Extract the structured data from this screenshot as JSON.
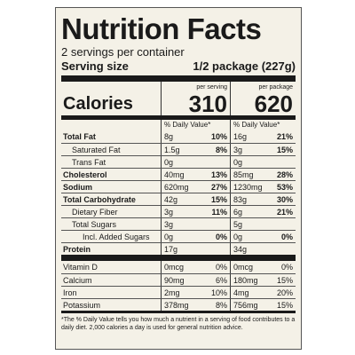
{
  "header": {
    "title": "Nutrition Facts",
    "servings": "2 servings per container",
    "serving_size_label": "Serving size",
    "serving_size": "1/2 package (227g)"
  },
  "columns": {
    "serving": "per serving",
    "package": "per package",
    "dv": "% Daily Value*"
  },
  "calories": {
    "label": "Calories",
    "serving": "310",
    "package": "620"
  },
  "rows": [
    {
      "nutrient": "Total Fat",
      "serving": [
        "8g",
        "10%"
      ],
      "package": [
        "16g",
        "21%"
      ]
    },
    {
      "nutrient": "Saturated Fat",
      "serving": [
        "1.5g",
        "8%"
      ],
      "package": [
        "3g",
        "15%"
      ]
    },
    {
      "nutrient": "Trans Fat",
      "serving": [
        "0g"
      ],
      "package": [
        "0g"
      ]
    },
    {
      "nutrient": "Cholesterol",
      "serving": [
        "40mg",
        "13%"
      ],
      "package": [
        "85mg",
        "28%"
      ]
    },
    {
      "nutrient": "Sodium",
      "serving": [
        "620mg",
        "27%"
      ],
      "package": [
        "1230mg",
        "53%"
      ]
    },
    {
      "nutrient": "Total Carbohydrate",
      "serving": [
        "42g",
        "15%"
      ],
      "package": [
        "83g",
        "30%"
      ]
    },
    {
      "nutrient": "Dietary Fiber",
      "serving": [
        "3g",
        "11%"
      ],
      "package": [
        "6g",
        "21%"
      ]
    },
    {
      "nutrient": "Total Sugars",
      "serving": [
        "3g"
      ],
      "package": [
        "5g"
      ]
    },
    {
      "nutrient": "Incl. Added Sugars",
      "serving": [
        "0g",
        "0%"
      ],
      "package": [
        "0g",
        "0%"
      ]
    },
    {
      "nutrient": "Protein",
      "serving": [
        "17g"
      ],
      "package": [
        "34g"
      ]
    }
  ],
  "vitamins": [
    {
      "nutrient": "Vitamin D",
      "serving": [
        "0mcg",
        "0%"
      ],
      "package": [
        "0mcg",
        "0%"
      ]
    },
    {
      "nutrient": "Calcium",
      "serving": [
        "90mg",
        "6%"
      ],
      "package": [
        "180mg",
        "15%"
      ]
    },
    {
      "nutrient": "Iron",
      "serving": [
        "2mg",
        "10%"
      ],
      "package": [
        "4mg",
        "20%"
      ]
    },
    {
      "nutrient": "Potassium",
      "serving": [
        "378mg",
        "8%"
      ],
      "package": [
        "756mg",
        "15%"
      ]
    }
  ],
  "footnote": "*The % Daily Value tells you how much a nutrient in a serving of food contributes to a daily diet. 2,000 calories a day is used for general nutrition advice."
}
